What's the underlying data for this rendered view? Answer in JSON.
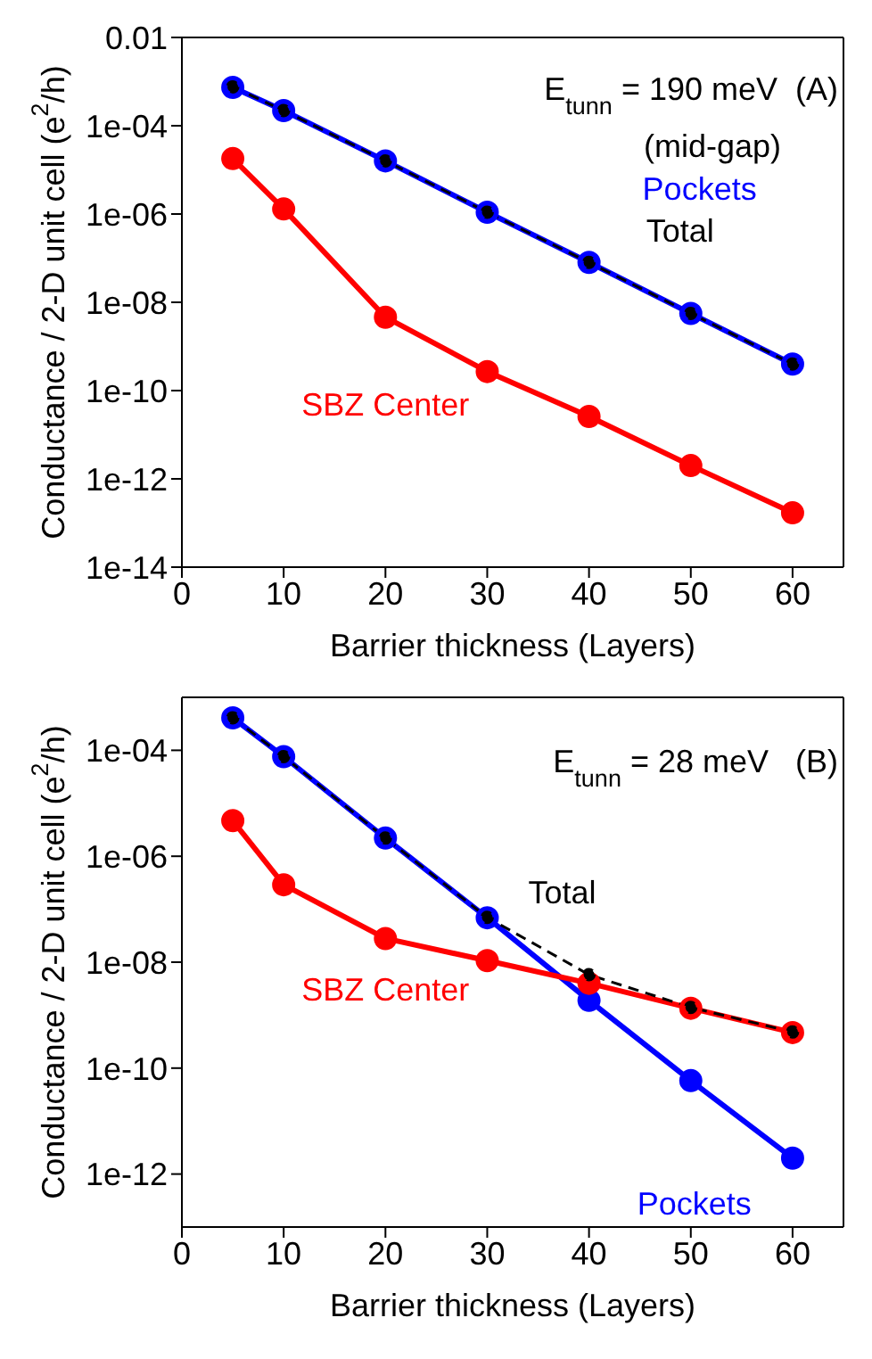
{
  "chart_data": [
    {
      "type": "line",
      "xlabel": "Barrier thickness (Layers)",
      "ylabel": "Conductance / 2-D unit cell (e$^{2}$/h)",
      "log": "y",
      "grid": false,
      "legend": false,
      "x": [
        5,
        10,
        20,
        30,
        40,
        50,
        60
      ],
      "xlim": [
        0,
        65
      ],
      "xticks": [
        0,
        10,
        20,
        30,
        40,
        50,
        60
      ],
      "ylim": [
        1e-14,
        0.01
      ],
      "yticks": [
        {
          "value": 1e-14,
          "label": "1e-14"
        },
        {
          "value": 1e-12,
          "label": "1e-12"
        },
        {
          "value": 1e-10,
          "label": "1e-10"
        },
        {
          "value": 1e-08,
          "label": "1e-08"
        },
        {
          "value": 1e-06,
          "label": "1e-06"
        },
        {
          "value": 0.0001,
          "label": "1e-04"
        },
        0.01
      ],
      "annotations": [
        "E$_{tunn}$ = 190 meV  (A)",
        "(mid-gap)"
      ],
      "series": [
        {
          "name": "Pockets",
          "color": "#0000ff",
          "marker": "circle",
          "line_style": "solid",
          "values": [
            0.00074,
            0.00022,
            1.6e-05,
            1.1e-06,
            8e-08,
            5.6e-09,
            4e-10
          ]
        },
        {
          "name": "SBZ Center",
          "color": "#ff0000",
          "marker": "circle",
          "line_style": "solid",
          "values": [
            1.8e-05,
            1.3e-06,
            4.6e-09,
            2.7e-10,
            2.6e-11,
            2e-12,
            1.7e-13
          ]
        },
        {
          "name": "Total",
          "color": "#000000",
          "marker": "circle",
          "line_style": "dashed",
          "values": [
            0.00076,
            0.00022,
            1.6e-05,
            1.1e-06,
            8e-08,
            5.6e-09,
            4e-10
          ]
        }
      ]
    },
    {
      "type": "line",
      "xlabel": "Barrier thickness (Layers)",
      "ylabel": "Conductance / 2-D unit cell (e$^{2}$/h)",
      "log": "y",
      "grid": false,
      "legend": false,
      "x": [
        5,
        10,
        20,
        30,
        40,
        50,
        60
      ],
      "xlim": [
        0,
        65
      ],
      "xticks": [
        0,
        10,
        20,
        30,
        40,
        50,
        60
      ],
      "ylim": [
        1e-13,
        0.001
      ],
      "yticks": [
        {
          "value": 1e-12,
          "label": "1e-12"
        },
        {
          "value": 1e-10,
          "label": "1e-10"
        },
        {
          "value": 1e-08,
          "label": "1e-08"
        },
        {
          "value": 1e-06,
          "label": "1e-06"
        },
        {
          "value": 0.0001,
          "label": "1e-04"
        }
      ],
      "annotations": [
        "E$_{tunn}$ = 28 meV   (B)"
      ],
      "series": [
        {
          "name": "Pockets",
          "color": "#0000ff",
          "marker": "circle",
          "line_style": "solid",
          "values": [
            0.00041,
            7.6e-05,
            2.2e-06,
            6.9e-08,
            1.9e-09,
            5.8e-11,
            2e-12
          ]
        },
        {
          "name": "SBZ Center",
          "color": "#ff0000",
          "marker": "circle",
          "line_style": "solid",
          "values": [
            4.7e-06,
            2.9e-07,
            2.8e-08,
            1.07e-08,
            4e-09,
            1.35e-09,
            4.7e-10
          ]
        },
        {
          "name": "Total",
          "color": "#000000",
          "marker": "circle",
          "line_style": "dashed",
          "values": [
            0.00041,
            7.6e-05,
            2.2e-06,
            7e-08,
            5.8e-09,
            1.4e-09,
            4.8e-10
          ]
        }
      ]
    }
  ]
}
